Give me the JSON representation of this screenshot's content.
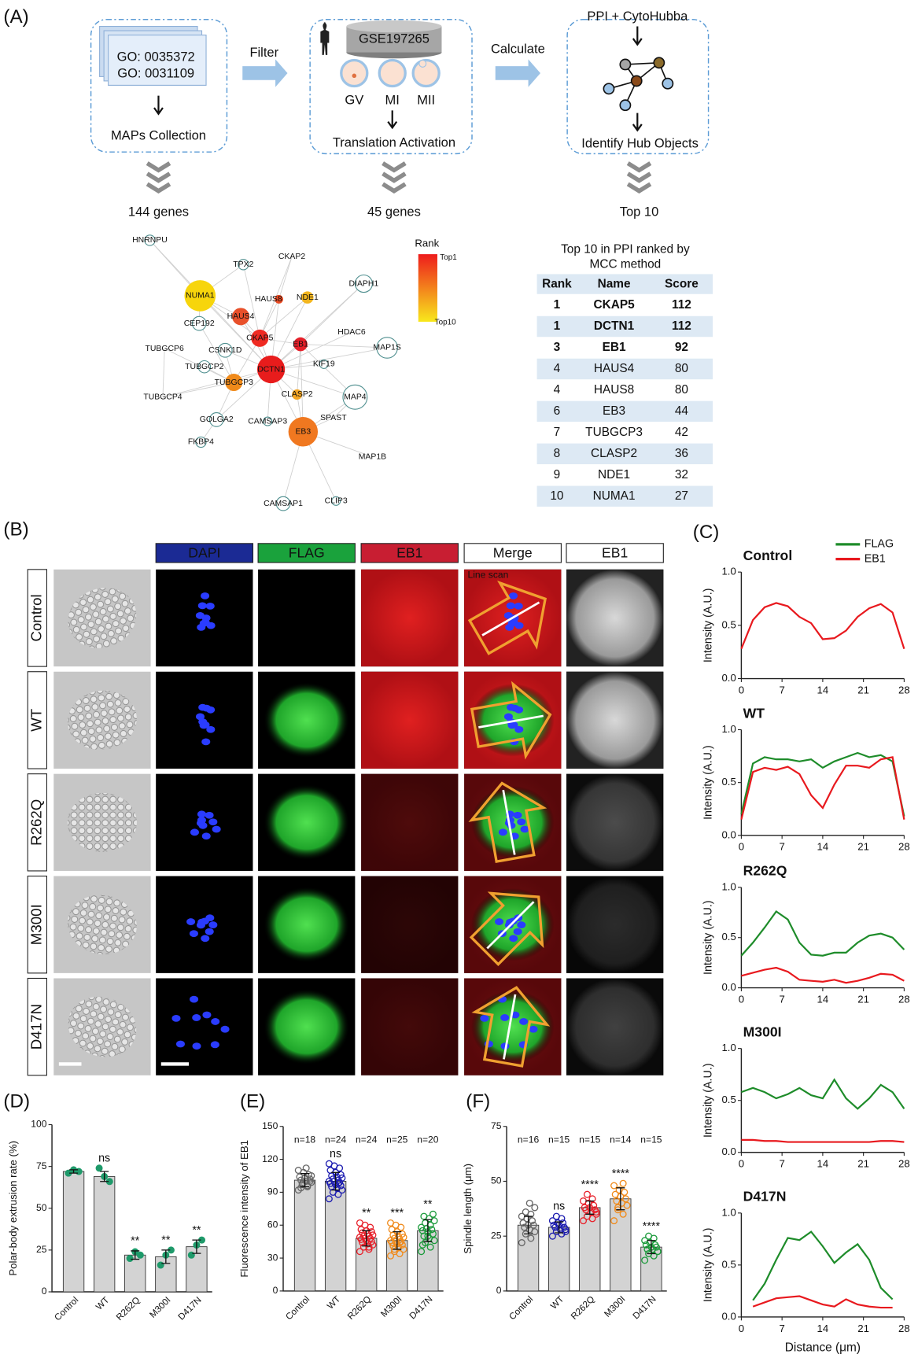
{
  "panel_labels": [
    "(A)",
    "(B)",
    "(C)",
    "(D)",
    "(E)",
    "(F)"
  ],
  "workflow": {
    "box1": {
      "items": [
        "GO: 0035372",
        "GO: 0031109"
      ],
      "label": "MAPs Collection"
    },
    "filter": "Filter",
    "box2": {
      "dataset": "GSE197265",
      "stages": [
        "GV",
        "MI",
        "MII"
      ],
      "label": "Translation Activation"
    },
    "calculate": "Calculate",
    "box3": {
      "title": "PPI + CytoHubba",
      "label": "Identify Hub Objects"
    },
    "results": [
      "144 genes",
      "45 genes",
      "Top 10"
    ]
  },
  "network": {
    "nodes": [
      "HNRNPU",
      "TPX2",
      "CKAP2",
      "NUMA1",
      "HAUS8",
      "NDE1",
      "DIAPH1",
      "HAUS4",
      "CEP192",
      "HDAC6",
      "CKAP5",
      "EB1",
      "TUBGCP6",
      "CSNK1D",
      "MAP1S",
      "KIF19",
      "DCTN1",
      "TUBGCP2",
      "TUBGCP3",
      "CLASP2",
      "TUBGCP4",
      "MAP4",
      "GOLGA2",
      "CAMSAP3",
      "SPAST",
      "EB3",
      "FKBP4",
      "MAP1B",
      "CAMSAP1",
      "CLIP3"
    ],
    "legend": {
      "title": "Rank",
      "top": "Top1",
      "bottom": "Top10",
      "colors": [
        "#ee1c1c",
        "#f8e81c"
      ]
    }
  },
  "table": {
    "title": [
      "Top 10 in PPI ranked by",
      "MCC method"
    ],
    "header": [
      "Rank",
      "Name",
      "Score"
    ],
    "rows": [
      [
        1,
        "CKAP5",
        112
      ],
      [
        1,
        "DCTN1",
        112
      ],
      [
        3,
        "EB1",
        92
      ],
      [
        4,
        "HAUS4",
        80
      ],
      [
        4,
        "HAUS8",
        80
      ],
      [
        6,
        "EB3",
        44
      ],
      [
        7,
        "TUBGCP3",
        42
      ],
      [
        8,
        "CLASP2",
        36
      ],
      [
        9,
        "NDE1",
        32
      ],
      [
        10,
        "NUMA1",
        27
      ]
    ],
    "highlighted": [
      true,
      true,
      true,
      false,
      false,
      false,
      false,
      false,
      false,
      false
    ],
    "highlight_color": "#c00000",
    "band_color": "#dde9f4"
  },
  "microscopy": {
    "channels": [
      {
        "name": "DAPI",
        "color": "#1b2a94"
      },
      {
        "name": "FLAG",
        "color": "#1aa23c"
      },
      {
        "name": "EB1",
        "color": "#c81e32"
      },
      {
        "name": "Merge",
        "color": "#ffffff"
      },
      {
        "name": "EB1",
        "color": "#ffffff"
      }
    ],
    "rows": [
      "Control",
      "WT",
      "R262Q",
      "M300I",
      "D417N"
    ],
    "annotation": "Line scan"
  },
  "chart_data": [
    {
      "type": "line",
      "title": "Control",
      "ylabel": "Intensity (A.U.)",
      "x": [
        0,
        2,
        4,
        6,
        8,
        10,
        12,
        14,
        16,
        18,
        20,
        22,
        24,
        26,
        28
      ],
      "series": [
        {
          "color": "#e8191e",
          "values": [
            0.28,
            0.55,
            0.67,
            0.71,
            0.68,
            0.58,
            0.52,
            0.37,
            0.38,
            0.45,
            0.58,
            0.66,
            0.7,
            0.62,
            0.28
          ]
        }
      ],
      "xlim": [
        0,
        28
      ],
      "xticks": [
        0,
        7,
        14,
        21,
        28
      ],
      "ylim": [
        0,
        1
      ],
      "yticks": [
        {
          "value": 0,
          "label": "0.0"
        },
        0.5,
        {
          "value": 1,
          "label": "1.0"
        }
      ]
    },
    {
      "type": "line",
      "title": "WT",
      "ylabel": "Intensity (A.U.)",
      "x": [
        0,
        2,
        4,
        6,
        8,
        10,
        12,
        14,
        16,
        18,
        20,
        22,
        24,
        26,
        28
      ],
      "series": [
        {
          "name": "FLAG",
          "color": "#1e8c2a",
          "values": [
            0.2,
            0.68,
            0.74,
            0.72,
            0.72,
            0.7,
            0.72,
            0.64,
            0.7,
            0.74,
            0.78,
            0.74,
            0.76,
            0.7,
            0.18
          ]
        },
        {
          "name": "EB1",
          "color": "#e8191e",
          "values": [
            0.15,
            0.6,
            0.64,
            0.62,
            0.65,
            0.58,
            0.38,
            0.26,
            0.48,
            0.66,
            0.66,
            0.64,
            0.72,
            0.74,
            0.15
          ]
        }
      ],
      "xlim": [
        0,
        28
      ],
      "xticks": [
        0,
        7,
        14,
        21,
        28
      ],
      "ylim": [
        0,
        1
      ],
      "yticks": [
        {
          "value": 0,
          "label": "0.0"
        },
        0.5,
        {
          "value": 1,
          "label": "1.0"
        }
      ]
    },
    {
      "type": "line",
      "title": "R262Q",
      "ylabel": "Intensity (A.U.)",
      "x": [
        0,
        2,
        4,
        6,
        8,
        10,
        12,
        14,
        16,
        18,
        20,
        22,
        24,
        26,
        28
      ],
      "series": [
        {
          "color": "#1e8c2a",
          "values": [
            0.32,
            0.45,
            0.6,
            0.76,
            0.68,
            0.45,
            0.33,
            0.32,
            0.35,
            0.35,
            0.45,
            0.52,
            0.54,
            0.5,
            0.38
          ]
        },
        {
          "color": "#e8191e",
          "values": [
            0.12,
            0.15,
            0.18,
            0.2,
            0.16,
            0.08,
            0.07,
            0.06,
            0.08,
            0.05,
            0.07,
            0.1,
            0.14,
            0.13,
            0.07
          ]
        }
      ],
      "xlim": [
        0,
        28
      ],
      "xticks": [
        0,
        7,
        14,
        21,
        28
      ],
      "ylim": [
        0,
        1
      ],
      "yticks": [
        {
          "value": 0,
          "label": "0.0"
        },
        0.5,
        {
          "value": 1,
          "label": "1.0"
        }
      ]
    },
    {
      "type": "line",
      "title": "M300I",
      "ylabel": "Intensity (A.U.)",
      "x": [
        0,
        2,
        4,
        6,
        8,
        10,
        12,
        14,
        16,
        18,
        20,
        22,
        24,
        26,
        28
      ],
      "series": [
        {
          "color": "#1e8c2a",
          "values": [
            0.58,
            0.62,
            0.58,
            0.52,
            0.56,
            0.62,
            0.55,
            0.52,
            0.7,
            0.52,
            0.42,
            0.52,
            0.65,
            0.58,
            0.42
          ]
        },
        {
          "color": "#e8191e",
          "values": [
            0.12,
            0.12,
            0.11,
            0.11,
            0.1,
            0.1,
            0.1,
            0.1,
            0.1,
            0.1,
            0.1,
            0.1,
            0.11,
            0.11,
            0.1
          ]
        }
      ],
      "xlim": [
        0,
        28
      ],
      "xticks": [
        0,
        7,
        14,
        21,
        28
      ],
      "ylim": [
        0,
        1
      ],
      "yticks": [
        {
          "value": 0,
          "label": "0.0"
        },
        0.5,
        {
          "value": 1,
          "label": "1.0"
        }
      ]
    },
    {
      "type": "line",
      "title": "D417N",
      "ylabel": "Intensity (A.U.)",
      "xlabel": "Distance (μm)",
      "x": [
        2,
        4,
        6,
        8,
        10,
        12,
        14,
        16,
        18,
        20,
        22,
        24,
        26
      ],
      "series": [
        {
          "color": "#1e8c2a",
          "values": [
            0.16,
            0.32,
            0.55,
            0.76,
            0.74,
            0.82,
            0.68,
            0.52,
            0.62,
            0.7,
            0.55,
            0.28,
            0.17
          ]
        },
        {
          "color": "#e8191e",
          "values": [
            0.1,
            0.14,
            0.18,
            0.19,
            0.2,
            0.16,
            0.12,
            0.1,
            0.17,
            0.12,
            0.1,
            0.09,
            0.09
          ]
        }
      ],
      "xlim": [
        0,
        28
      ],
      "xticks": [
        0,
        7,
        14,
        21,
        28
      ],
      "ylim": [
        0,
        1
      ],
      "yticks": [
        {
          "value": 0,
          "label": "0.0"
        },
        0.5,
        {
          "value": 1,
          "label": "1.0"
        }
      ]
    },
    {
      "type": "bar",
      "ylabel": "Polar-body extrusion rate (%)",
      "categories": [
        "Control",
        "WT",
        "R262Q",
        "M300I",
        "D417N"
      ],
      "values": [
        72,
        69,
        22,
        21,
        27
      ],
      "errors": [
        1,
        3,
        2.5,
        4,
        4
      ],
      "color": "#d3d3d3",
      "point_colors": [
        "#1e9a6a",
        "#1e9a6a",
        "#1e9a6a",
        "#1e9a6a",
        "#1e9a6a"
      ],
      "points": [
        [
          71,
          73,
          72
        ],
        [
          74,
          69,
          66
        ],
        [
          20,
          24,
          22
        ],
        [
          16,
          22,
          25
        ],
        [
          22,
          28,
          31
        ]
      ],
      "annotations": [
        null,
        "ns",
        "**",
        "**",
        "**"
      ],
      "ylim": [
        0,
        100
      ],
      "yticks": [
        0,
        25,
        50,
        75,
        100
      ]
    },
    {
      "type": "bar",
      "ylabel": "Fluorescence intensity of EB1",
      "categories": [
        "Control",
        "WT",
        "R262Q",
        "M300I",
        "D417N"
      ],
      "values": [
        101,
        100,
        48,
        46,
        55
      ],
      "errors": [
        6,
        8,
        7,
        8,
        10
      ],
      "color": "#d3d3d3",
      "point_colors": [
        "#666666",
        "#1c1cb0",
        "#e8202a",
        "#f08a1a",
        "#1a9a3a"
      ],
      "points": [
        [
          92,
          95,
          97,
          99,
          100,
          101,
          102,
          103,
          104,
          106,
          108,
          110,
          96,
          98,
          105,
          112,
          94,
          100
        ],
        [
          84,
          88,
          90,
          92,
          94,
          95,
          96,
          97,
          98,
          99,
          100,
          100,
          101,
          102,
          103,
          104,
          105,
          106,
          108,
          110,
          112,
          114,
          116,
          98
        ],
        [
          36,
          38,
          40,
          42,
          43,
          44,
          45,
          46,
          47,
          48,
          48,
          49,
          50,
          50,
          51,
          52,
          53,
          54,
          55,
          56,
          58,
          60,
          62,
          40
        ],
        [
          32,
          34,
          36,
          38,
          40,
          41,
          42,
          43,
          44,
          45,
          45,
          46,
          47,
          48,
          49,
          50,
          51,
          52,
          54,
          56,
          58,
          60,
          62,
          44,
          38
        ],
        [
          36,
          40,
          44,
          46,
          48,
          50,
          52,
          54,
          55,
          56,
          57,
          58,
          60,
          62,
          64,
          66,
          68,
          70,
          50,
          42
        ]
      ],
      "n_labels": [
        "n=18",
        "n=24",
        "n=24",
        "n=25",
        "n=20"
      ],
      "annotations": [
        null,
        "ns",
        "**",
        "***",
        "**"
      ],
      "ylim": [
        0,
        150
      ],
      "yticks": [
        0,
        30,
        60,
        90,
        120,
        150
      ]
    },
    {
      "type": "bar",
      "ylabel": "Spindle length (μm)",
      "categories": [
        "Control",
        "WT",
        "R262Q",
        "M300I",
        "D417N"
      ],
      "values": [
        30,
        29,
        38,
        42,
        20
      ],
      "errors": [
        4,
        2.5,
        3,
        5,
        3
      ],
      "color": "#d3d3d3",
      "point_colors": [
        "#666666",
        "#1c1cb0",
        "#e8202a",
        "#f08a1a",
        "#1a9a3a"
      ],
      "points": [
        [
          22,
          24,
          26,
          27,
          28,
          29,
          30,
          30,
          31,
          32,
          33,
          34,
          35,
          36,
          38,
          40
        ],
        [
          25,
          26,
          27,
          28,
          28,
          29,
          29,
          30,
          30,
          31,
          31,
          32,
          33,
          34,
          27
        ],
        [
          32,
          33,
          34,
          35,
          36,
          37,
          37,
          38,
          38,
          39,
          40,
          41,
          42,
          44,
          36
        ],
        [
          32,
          35,
          37,
          39,
          40,
          41,
          42,
          43,
          44,
          45,
          46,
          48,
          49,
          38
        ],
        [
          14,
          16,
          17,
          18,
          19,
          19,
          20,
          20,
          21,
          21,
          22,
          23,
          24,
          25,
          18
        ]
      ],
      "n_labels": [
        "n=16",
        "n=15",
        "n=15",
        "n=14",
        "n=15"
      ],
      "annotations": [
        null,
        "ns",
        "****",
        "****",
        "****"
      ],
      "ylim": [
        0,
        75
      ],
      "yticks": [
        0,
        25,
        50,
        75
      ]
    }
  ]
}
